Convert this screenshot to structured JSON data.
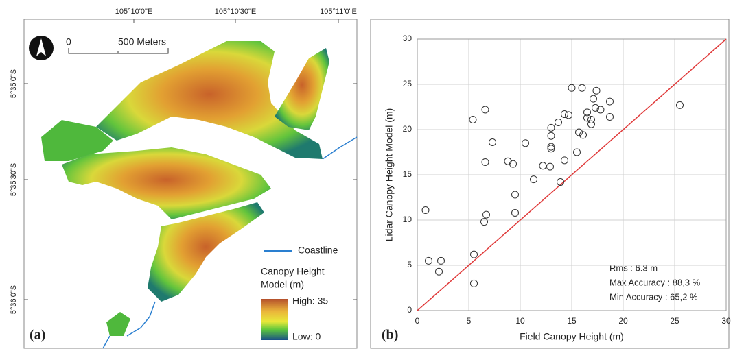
{
  "map": {
    "panel_label": "(a)",
    "lon_labels": [
      "105°10'0\"E",
      "105°10'30\"E",
      "105°11'0\"E"
    ],
    "lat_labels": [
      "5°35'0\"S",
      "5°35'30\"S",
      "5°36'0\"S"
    ],
    "scale_labels": [
      "0",
      "500 Meters"
    ],
    "coastline_label": "Coastline",
    "legend_title": [
      "Canopy Height",
      "Model (m)"
    ],
    "legend_high": "High: 35",
    "legend_low": "Low: 0"
  },
  "chart_data": {
    "type": "scatter",
    "panel_label": "(b)",
    "x_label": "Field Canopy Height (m)",
    "y_label": "Lidar Canopy Height Model (m)",
    "x": [
      0.8,
      1.1,
      2.3,
      2.1,
      5.5,
      5.5,
      5.4,
      6.6,
      6.6,
      7.3,
      6.7,
      6.5,
      8.8,
      9.3,
      9.5,
      9.5,
      10.5,
      11.3,
      12.2,
      12.9,
      13.0,
      13.0,
      13.0,
      13.0,
      13.7,
      13.9,
      14.3,
      14.3,
      14.7,
      15.0,
      16.0,
      15.5,
      15.7,
      16.1,
      16.5,
      16.5,
      16.9,
      16.9,
      17.1,
      17.4,
      17.3,
      17.8,
      18.7,
      18.7,
      25.5
    ],
    "values": [
      11.1,
      5.5,
      5.5,
      4.3,
      6.2,
      3.0,
      21.1,
      22.2,
      16.4,
      18.6,
      10.6,
      9.8,
      16.5,
      16.2,
      12.8,
      10.8,
      18.5,
      14.5,
      16.0,
      15.9,
      18.1,
      17.9,
      19.3,
      20.2,
      20.8,
      14.2,
      21.7,
      16.6,
      21.6,
      24.6,
      24.6,
      17.5,
      19.7,
      19.4,
      21.9,
      21.3,
      21.1,
      20.6,
      23.4,
      24.3,
      22.4,
      22.2,
      23.1,
      21.4,
      22.7
    ],
    "marker_color": "#333333",
    "identity_line": true,
    "identity_color": "#e03a3a",
    "xlim": [
      0,
      30
    ],
    "ylim": [
      0,
      30
    ],
    "xticks": [
      0,
      5,
      10,
      15,
      20,
      25,
      30
    ],
    "yticks": [
      0,
      5,
      10,
      15,
      20,
      25,
      30
    ],
    "grid": true,
    "annotations": [
      "Rms : 6.3 m",
      "Max Accuracy : 88,3 %",
      "Min Accuracy : 65,2 %"
    ]
  }
}
